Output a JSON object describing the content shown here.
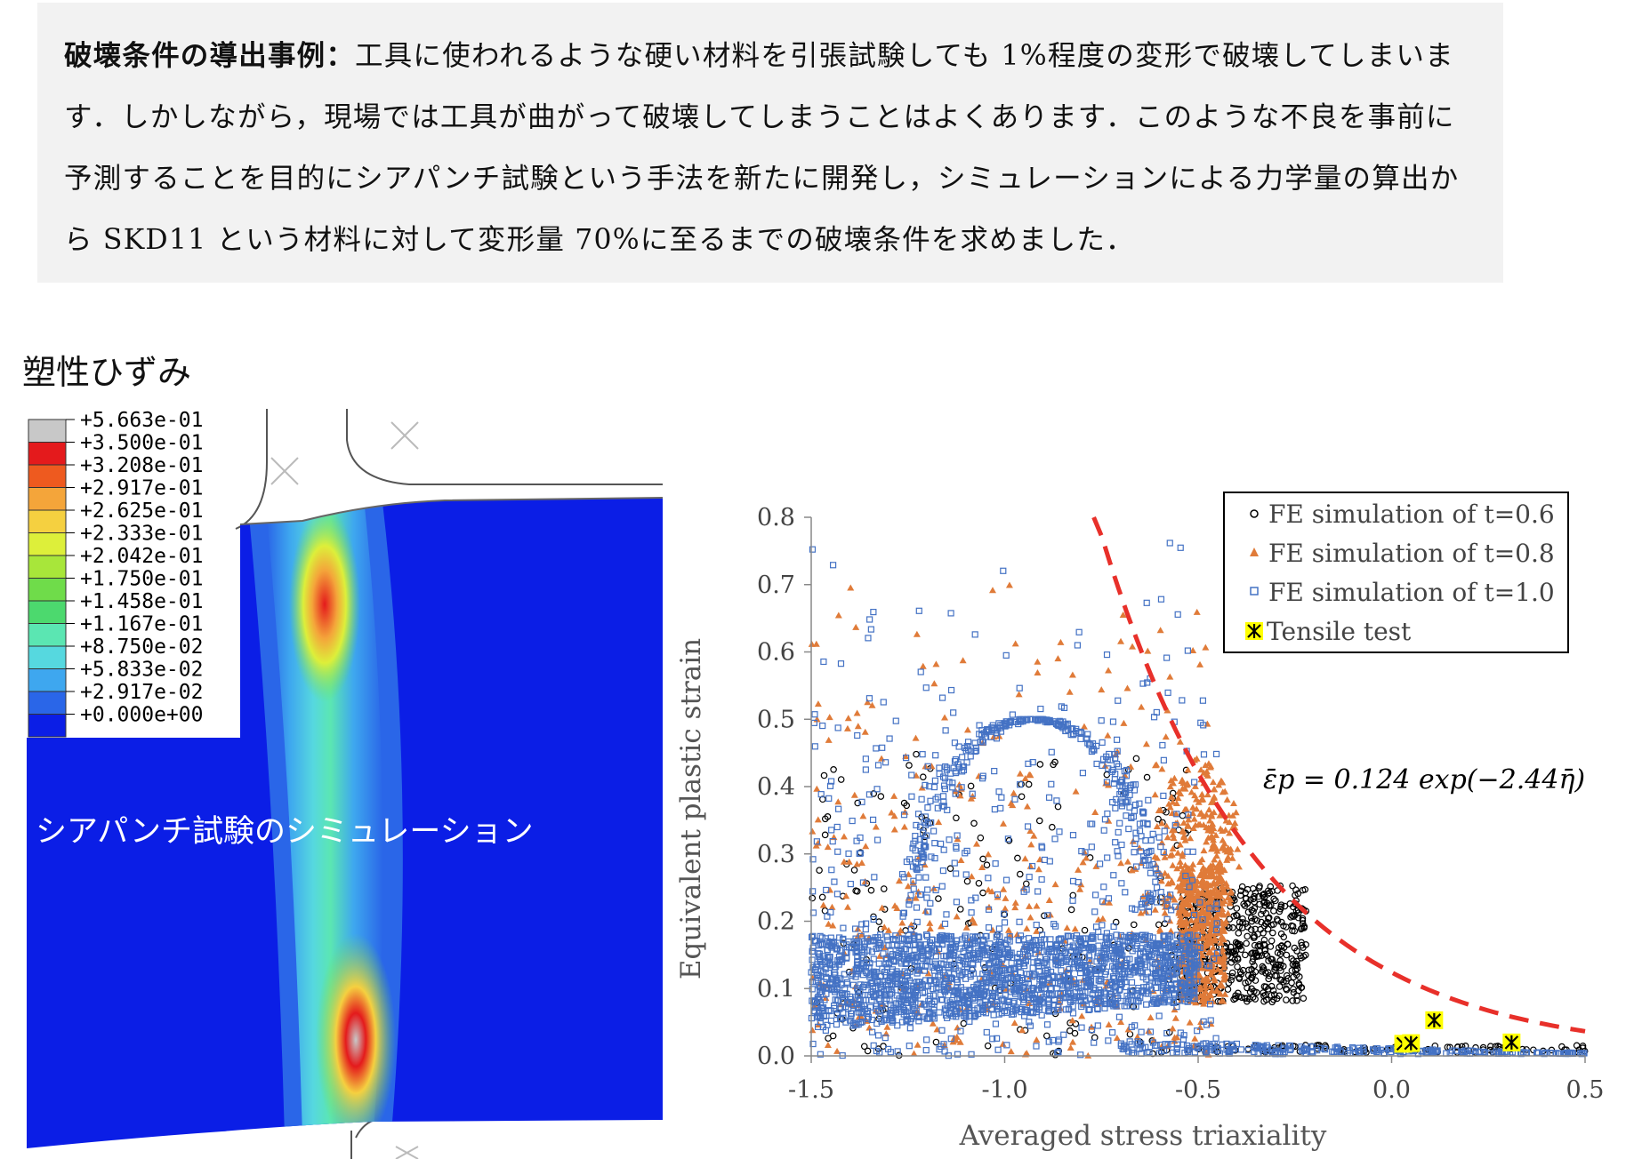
{
  "intro": {
    "lead": "破壊条件の導出事例",
    "colon": "：",
    "body": "工具に使われるような硬い材料を引張試験しても 1%程度の変形で破壊してしまいます．しかしながら，現場では工具が曲がって破壊してしまうことはよくあります．このような不良を事前に予測することを目的にシアパンチ試験という手法を新たに開発し，シミュレーションによる力学量の算出から SKD11 という材料に対して変形量 70%に至るまでの破壊条件を求めました．"
  },
  "simulation": {
    "heading": "塑性ひずみ",
    "caption": "シアパンチ試験のシミュレーション",
    "legend": [
      {
        "label": "+5.663e-01",
        "color": "#c8c8c8"
      },
      {
        "label": "+3.500e-01",
        "color": "#e41a1c"
      },
      {
        "label": "+3.208e-01",
        "color": "#ee5a1f"
      },
      {
        "label": "+2.917e-01",
        "color": "#f4a53a"
      },
      {
        "label": "+2.625e-01",
        "color": "#f5d040"
      },
      {
        "label": "+2.333e-01",
        "color": "#ddef3a"
      },
      {
        "label": "+2.042e-01",
        "color": "#a8e63a"
      },
      {
        "label": "+1.750e-01",
        "color": "#6fdc4a"
      },
      {
        "label": "+1.458e-01",
        "color": "#4cd96e"
      },
      {
        "label": "+1.167e-01",
        "color": "#5be6b2"
      },
      {
        "label": "+8.750e-02",
        "color": "#56d8df"
      },
      {
        "label": "+5.833e-02",
        "color": "#3ea7ef"
      },
      {
        "label": "+2.917e-02",
        "color": "#2a66e8"
      },
      {
        "label": "+0.000e+00",
        "color": "#0b1ee6"
      }
    ]
  },
  "chart_data": {
    "type": "scatter",
    "title": "",
    "xlabel": "Averaged stress triaxiality",
    "ylabel": "Equivalent plastic strain",
    "xlim": [
      -1.5,
      0.5
    ],
    "ylim": [
      0.0,
      0.8
    ],
    "x_ticks": [
      "-1.5",
      "-1.0",
      "-0.5",
      "0.0",
      "0.5"
    ],
    "y_ticks": [
      "0.0",
      "0.1",
      "0.2",
      "0.3",
      "0.4",
      "0.5",
      "0.6",
      "0.7",
      "0.8"
    ],
    "grid": false,
    "legend_position": "top-right",
    "equation": "ε̄p = 0.124 exp(−2.44η̄)",
    "series": [
      {
        "name": "FE simulation of t=0.6",
        "marker": "circle",
        "color": "#000000"
      },
      {
        "name": "FE simulation of t=0.8",
        "marker": "triangle",
        "color": "#e07b39"
      },
      {
        "name": "FE simulation of t=1.0",
        "marker": "square",
        "color": "#4472c4"
      },
      {
        "name": "Tensile test",
        "marker": "asterisk",
        "color": "#000000",
        "fill": "#ffff00",
        "points": [
          [
            0.03,
            0.018
          ],
          [
            0.05,
            0.019
          ],
          [
            0.11,
            0.053
          ],
          [
            0.31,
            0.02
          ]
        ]
      }
    ],
    "fit_curve": {
      "a": 0.124,
      "b": -2.44,
      "x_range": [
        -0.77,
        0.5
      ],
      "style": "dashed",
      "color": "#e8302a"
    }
  }
}
